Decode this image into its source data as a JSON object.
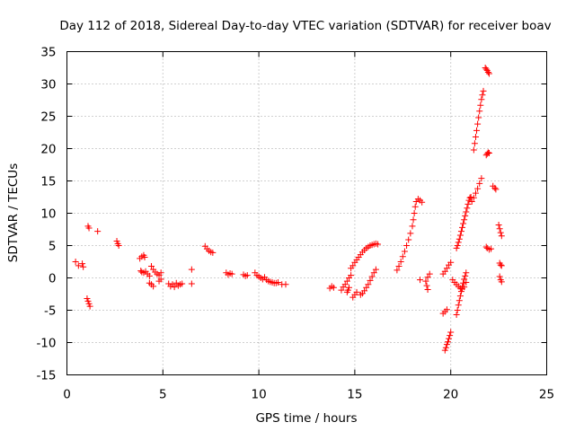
{
  "chart_data": {
    "type": "scatter",
    "title": "Day 112 of 2018, Sidereal Day-to-day VTEC variation (SDTVAR) for receiver boav",
    "xlabel": "GPS time / hours",
    "ylabel": "SDTVAR / TECUs",
    "xlim": [
      0,
      25
    ],
    "ylim": [
      -15,
      35
    ],
    "xticks": [
      0,
      5,
      10,
      15,
      20,
      25
    ],
    "yticks": [
      -15,
      -10,
      -5,
      0,
      5,
      10,
      15,
      20,
      25,
      30,
      35
    ],
    "grid": true,
    "marker": "plus",
    "color": "#ff0000",
    "segments": [
      {
        "x": [
          0.45,
          0.6,
          0.8,
          0.85
        ],
        "y": [
          2.5,
          1.9,
          2.2,
          1.7
        ]
      },
      {
        "x": [
          1.05,
          1.1,
          1.15,
          1.2
        ],
        "y": [
          -3.2,
          -3.6,
          -4.0,
          -4.4
        ]
      },
      {
        "x": [
          1.1,
          1.15
        ],
        "y": [
          8.0,
          7.7
        ]
      },
      {
        "x": [
          1.6
        ],
        "y": [
          7.2
        ]
      },
      {
        "x": [
          2.6,
          2.65,
          2.7
        ],
        "y": [
          5.7,
          5.3,
          5.0
        ]
      },
      {
        "x": [
          3.8,
          3.9,
          4.0,
          4.05
        ],
        "y": [
          3.0,
          3.3,
          3.5,
          3.2
        ]
      },
      {
        "x": [
          3.85,
          3.9,
          4.0,
          4.1,
          4.2,
          4.3
        ],
        "y": [
          1.1,
          0.9,
          0.8,
          1.0,
          0.6,
          0.3
        ]
      },
      {
        "x": [
          4.3,
          4.4,
          4.5
        ],
        "y": [
          -0.8,
          -1.0,
          -1.3
        ]
      },
      {
        "x": [
          4.4,
          4.5
        ],
        "y": [
          1.8,
          1.3
        ]
      },
      {
        "x": [
          4.6,
          4.7,
          4.8,
          4.9
        ],
        "y": [
          0.9,
          0.6,
          0.4,
          0.8
        ]
      },
      {
        "x": [
          4.8,
          4.9
        ],
        "y": [
          -0.5,
          -0.2
        ]
      },
      {
        "x": [
          5.3,
          5.4,
          5.5,
          5.6,
          5.7,
          5.8,
          5.9,
          6.0
        ],
        "y": [
          -0.9,
          -1.3,
          -1.0,
          -1.4,
          -0.8,
          -1.2,
          -1.0,
          -0.9
        ]
      },
      {
        "x": [
          6.5,
          6.5
        ],
        "y": [
          1.3,
          -0.9
        ]
      },
      {
        "x": [
          7.2,
          7.3,
          7.4,
          7.5,
          7.6
        ],
        "y": [
          4.9,
          4.5,
          4.2,
          4.0,
          3.9
        ]
      },
      {
        "x": [
          8.3,
          8.4,
          8.5,
          8.6
        ],
        "y": [
          0.8,
          0.5,
          0.7,
          0.6
        ]
      },
      {
        "x": [
          9.2,
          9.3,
          9.4
        ],
        "y": [
          0.5,
          0.3,
          0.4
        ]
      },
      {
        "x": [
          9.8,
          9.9,
          10.0,
          10.1,
          10.2,
          10.3,
          10.4,
          10.5,
          10.6,
          10.7,
          10.8,
          10.9,
          11.0,
          11.2,
          11.4
        ],
        "y": [
          0.8,
          0.4,
          0.2,
          0.0,
          -0.2,
          0.1,
          -0.3,
          -0.5,
          -0.6,
          -0.7,
          -0.8,
          -0.8,
          -0.7,
          -1.0,
          -1.0
        ]
      },
      {
        "x": [
          13.7,
          13.8,
          13.9
        ],
        "y": [
          -1.6,
          -1.3,
          -1.5
        ]
      },
      {
        "x": [
          14.3,
          14.4,
          14.5,
          14.6,
          14.7,
          14.8
        ],
        "y": [
          -1.9,
          -1.4,
          -1.0,
          -0.5,
          0.0,
          0.4
        ]
      },
      {
        "x": [
          14.6,
          14.65,
          14.7
        ],
        "y": [
          -2.2,
          -1.9,
          -1.5
        ]
      },
      {
        "x": [
          14.9,
          15.0,
          15.1
        ],
        "y": [
          -3.0,
          -2.6,
          -2.2
        ]
      },
      {
        "x": [
          14.8,
          14.9,
          15.0,
          15.1,
          15.2,
          15.3,
          15.4,
          15.5,
          15.6,
          15.7,
          15.8,
          15.9,
          16.0,
          16.1,
          16.2
        ],
        "y": [
          1.5,
          1.9,
          2.4,
          2.8,
          3.2,
          3.6,
          4.0,
          4.3,
          4.6,
          4.8,
          5.0,
          5.1,
          5.2,
          5.3,
          5.2
        ]
      },
      {
        "x": [
          15.3,
          15.4,
          15.5,
          15.6,
          15.7,
          15.8,
          15.9,
          16.0,
          16.1
        ],
        "y": [
          -2.6,
          -2.4,
          -2.0,
          -1.5,
          -1.0,
          -0.4,
          0.2,
          0.8,
          1.3
        ]
      },
      {
        "x": [
          17.2,
          17.3,
          17.4,
          17.5,
          17.6,
          17.7,
          17.8,
          17.9,
          18.0,
          18.05,
          18.1,
          18.15,
          18.2,
          18.3,
          18.4,
          18.5
        ],
        "y": [
          1.2,
          1.8,
          2.5,
          3.3,
          4.1,
          5.0,
          5.9,
          6.9,
          8.0,
          9.0,
          10.0,
          11.0,
          11.8,
          12.2,
          12.0,
          11.7
        ]
      },
      {
        "x": [
          18.4
        ],
        "y": [
          -0.3
        ]
      },
      {
        "x": [
          18.7,
          18.8,
          18.9
        ],
        "y": [
          -0.5,
          0.1,
          0.6
        ]
      },
      {
        "x": [
          18.75,
          18.8
        ],
        "y": [
          -1.2,
          -1.8
        ]
      },
      {
        "x": [
          19.6,
          19.7,
          19.8
        ],
        "y": [
          -5.5,
          -5.2,
          -4.9
        ]
      },
      {
        "x": [
          19.7,
          19.75,
          19.8,
          19.85,
          19.9,
          19.95,
          20.0
        ],
        "y": [
          -11.2,
          -10.8,
          -10.3,
          -9.9,
          -9.4,
          -8.9,
          -8.4
        ]
      },
      {
        "x": [
          19.6,
          19.7,
          19.8,
          19.9,
          20.0
        ],
        "y": [
          0.6,
          1.0,
          1.5,
          2.0,
          2.4
        ]
      },
      {
        "x": [
          20.1,
          20.2,
          20.3,
          20.4,
          20.5,
          20.6,
          20.7,
          20.8
        ],
        "y": [
          -0.3,
          -0.7,
          -1.0,
          -1.3,
          -1.6,
          -1.7,
          -1.4,
          -0.7
        ]
      },
      {
        "x": [
          20.3,
          20.35,
          20.4,
          20.45,
          20.5,
          20.55,
          20.6,
          20.65,
          20.7,
          20.75,
          20.8
        ],
        "y": [
          -5.7,
          -5.0,
          -4.2,
          -3.5,
          -2.8,
          -2.1,
          -1.4,
          -0.8,
          -0.2,
          0.3,
          0.8
        ]
      },
      {
        "x": [
          20.3,
          20.35,
          20.4,
          20.45,
          20.5,
          20.55,
          20.6,
          20.65,
          20.7,
          20.75,
          20.8,
          20.85,
          20.9,
          20.95,
          21.0,
          21.05
        ],
        "y": [
          4.6,
          5.0,
          5.5,
          6.0,
          6.6,
          7.2,
          7.8,
          8.4,
          9.0,
          9.6,
          10.2,
          10.8,
          11.4,
          12.0,
          12.4,
          12.5
        ]
      },
      {
        "x": [
          21.1,
          21.2,
          21.3,
          21.4,
          21.5,
          21.6
        ],
        "y": [
          11.8,
          12.4,
          13.1,
          13.8,
          14.6,
          15.4
        ]
      },
      {
        "x": [
          21.2,
          21.25,
          21.3,
          21.35,
          21.4,
          21.45,
          21.5,
          21.55,
          21.6,
          21.65,
          21.7
        ],
        "y": [
          19.8,
          20.8,
          21.8,
          22.8,
          23.8,
          24.8,
          25.8,
          26.7,
          27.6,
          28.3,
          28.9
        ]
      },
      {
        "x": [
          21.8,
          21.85,
          21.9,
          21.95,
          22.0
        ],
        "y": [
          32.5,
          32.3,
          32.1,
          31.8,
          31.6
        ]
      },
      {
        "x": [
          21.85,
          21.9,
          21.95,
          22.0
        ],
        "y": [
          19.0,
          19.2,
          19.4,
          19.3
        ]
      },
      {
        "x": [
          21.85,
          21.9,
          22.0,
          22.1
        ],
        "y": [
          4.8,
          4.6,
          4.4,
          4.5
        ]
      },
      {
        "x": [
          22.2,
          22.3,
          22.35
        ],
        "y": [
          14.2,
          13.9,
          13.7
        ]
      },
      {
        "x": [
          22.5,
          22.55,
          22.6,
          22.65
        ],
        "y": [
          8.2,
          7.6,
          7.0,
          6.5
        ]
      },
      {
        "x": [
          22.55,
          22.6,
          22.65
        ],
        "y": [
          2.3,
          2.0,
          1.9
        ]
      },
      {
        "x": [
          22.55,
          22.6,
          22.65
        ],
        "y": [
          0.2,
          -0.3,
          -0.6
        ]
      }
    ]
  }
}
